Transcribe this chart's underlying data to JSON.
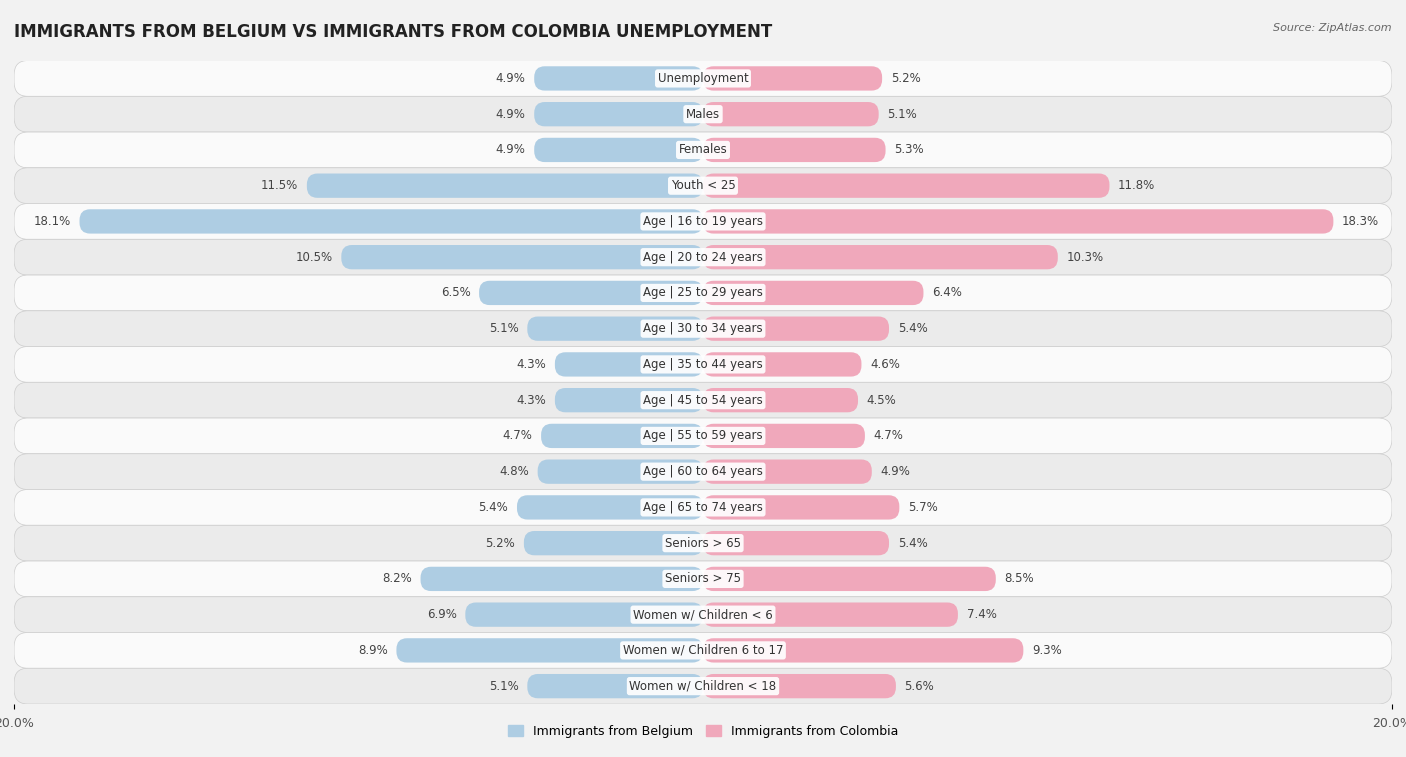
{
  "title": "IMMIGRANTS FROM BELGIUM VS IMMIGRANTS FROM COLOMBIA UNEMPLOYMENT",
  "source": "Source: ZipAtlas.com",
  "categories": [
    "Unemployment",
    "Males",
    "Females",
    "Youth < 25",
    "Age | 16 to 19 years",
    "Age | 20 to 24 years",
    "Age | 25 to 29 years",
    "Age | 30 to 34 years",
    "Age | 35 to 44 years",
    "Age | 45 to 54 years",
    "Age | 55 to 59 years",
    "Age | 60 to 64 years",
    "Age | 65 to 74 years",
    "Seniors > 65",
    "Seniors > 75",
    "Women w/ Children < 6",
    "Women w/ Children 6 to 17",
    "Women w/ Children < 18"
  ],
  "belgium_values": [
    4.9,
    4.9,
    4.9,
    11.5,
    18.1,
    10.5,
    6.5,
    5.1,
    4.3,
    4.3,
    4.7,
    4.8,
    5.4,
    5.2,
    8.2,
    6.9,
    8.9,
    5.1
  ],
  "colombia_values": [
    5.2,
    5.1,
    5.3,
    11.8,
    18.3,
    10.3,
    6.4,
    5.4,
    4.6,
    4.5,
    4.7,
    4.9,
    5.7,
    5.4,
    8.5,
    7.4,
    9.3,
    5.6
  ],
  "belgium_color": "#aecde3",
  "colombia_color": "#f0a8bb",
  "background_color": "#f2f2f2",
  "row_color_light": "#fafafa",
  "row_color_dark": "#ebebeb",
  "max_val": 20.0,
  "bar_height": 0.68,
  "title_fontsize": 12,
  "label_fontsize": 8.5,
  "value_fontsize": 8.5,
  "tick_fontsize": 9
}
